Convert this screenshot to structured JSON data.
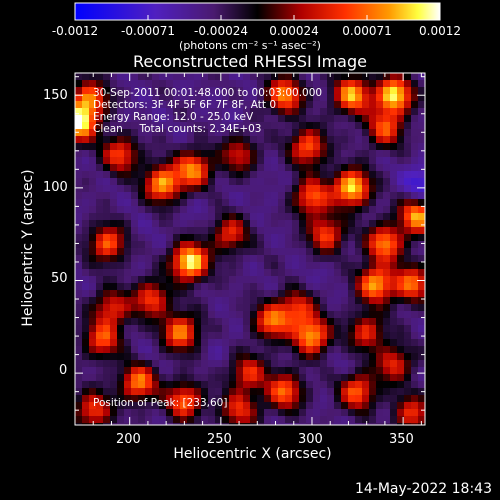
{
  "colors": {
    "background": "#000000",
    "text": "#ffffff",
    "colormap": "rainbow-blue-black-red-yellow-white"
  },
  "colorbar": {
    "tick_labels": [
      "-0.0012",
      "-0.00071",
      "-0.00024",
      "0.00024",
      "0.00071",
      "0.0012"
    ],
    "units_label": "(photons cm⁻² s⁻¹ asec⁻²)"
  },
  "title": "Reconstructed RHESSI Image",
  "info": {
    "time": "30-Sep-2011 00:01:48.000 to 00:03:00.000",
    "detectors": "Detectors: 3F 4F 5F 6F 7F 8F, Att 0",
    "energy": "Energy Range: 12.0 - 25.0 keV",
    "clean": "Clean     Total counts: 2.34E+03",
    "position": "Position of Peak: [233,60]"
  },
  "timestamp": "14-May-2022 18:43",
  "chart_data": {
    "type": "heatmap",
    "title": "Reconstructed RHESSI Image",
    "xlabel": "Heliocentric X (arcsec)",
    "ylabel": "Heliocentric Y (arcsec)",
    "xlim": [
      170,
      362
    ],
    "ylim": [
      -28,
      162
    ],
    "xticks": [
      200,
      250,
      300,
      350
    ],
    "yticks": [
      0,
      50,
      100,
      150
    ],
    "colorbar_range": [
      -0.0012,
      0.0012
    ],
    "peak_position": [
      233,
      60
    ],
    "hotspots": [
      {
        "x": 172,
        "y": 135,
        "v": 0.0011
      },
      {
        "x": 178,
        "y": 148,
        "v": 0.0007
      },
      {
        "x": 195,
        "y": 118,
        "v": 0.0006
      },
      {
        "x": 218,
        "y": 102,
        "v": 0.0009
      },
      {
        "x": 235,
        "y": 110,
        "v": 0.0008
      },
      {
        "x": 260,
        "y": 118,
        "v": 0.0004
      },
      {
        "x": 285,
        "y": 150,
        "v": 0.0008
      },
      {
        "x": 322,
        "y": 150,
        "v": 0.0009
      },
      {
        "x": 345,
        "y": 150,
        "v": 0.0011
      },
      {
        "x": 340,
        "y": 132,
        "v": 0.0006
      },
      {
        "x": 298,
        "y": 122,
        "v": 0.0007
      },
      {
        "x": 322,
        "y": 100,
        "v": 0.0011
      },
      {
        "x": 300,
        "y": 95,
        "v": 0.0007
      },
      {
        "x": 340,
        "y": 70,
        "v": 0.0008
      },
      {
        "x": 358,
        "y": 85,
        "v": 0.0009
      },
      {
        "x": 308,
        "y": 75,
        "v": 0.0006
      },
      {
        "x": 335,
        "y": 48,
        "v": 0.0009
      },
      {
        "x": 355,
        "y": 48,
        "v": 0.0007
      },
      {
        "x": 233,
        "y": 60,
        "v": 0.0012
      },
      {
        "x": 255,
        "y": 75,
        "v": 0.0005
      },
      {
        "x": 188,
        "y": 70,
        "v": 0.0007
      },
      {
        "x": 212,
        "y": 40,
        "v": 0.0006
      },
      {
        "x": 228,
        "y": 22,
        "v": 0.0008
      },
      {
        "x": 185,
        "y": 18,
        "v": 0.0006
      },
      {
        "x": 190,
        "y": 35,
        "v": 0.0005
      },
      {
        "x": 278,
        "y": 28,
        "v": 0.0007
      },
      {
        "x": 300,
        "y": 20,
        "v": 0.0009
      },
      {
        "x": 292,
        "y": 35,
        "v": 0.0005
      },
      {
        "x": 330,
        "y": 22,
        "v": 0.0005
      },
      {
        "x": 345,
        "y": 5,
        "v": 0.0005
      },
      {
        "x": 325,
        "y": -10,
        "v": 0.0007
      },
      {
        "x": 285,
        "y": -10,
        "v": 0.0007
      },
      {
        "x": 205,
        "y": -5,
        "v": 0.0008
      },
      {
        "x": 230,
        "y": -15,
        "v": 0.0007
      },
      {
        "x": 260,
        "y": -20,
        "v": 0.0005
      },
      {
        "x": 265,
        "y": 0,
        "v": 0.0005
      },
      {
        "x": 180,
        "y": -20,
        "v": 0.0006
      },
      {
        "x": 355,
        "y": -22,
        "v": 0.0005
      }
    ],
    "coldspots": [
      {
        "x": 205,
        "y": 140,
        "v": -0.0004
      },
      {
        "x": 258,
        "y": 142,
        "v": -0.0004
      },
      {
        "x": 240,
        "y": 88,
        "v": -0.0004
      },
      {
        "x": 275,
        "y": 98,
        "v": -0.0004
      },
      {
        "x": 275,
        "y": 60,
        "v": -0.0003
      },
      {
        "x": 300,
        "y": 50,
        "v": -0.0004
      },
      {
        "x": 360,
        "y": 102,
        "v": -0.0009
      },
      {
        "x": 212,
        "y": 8,
        "v": -0.0004
      },
      {
        "x": 252,
        "y": 15,
        "v": -0.0004
      },
      {
        "x": 318,
        "y": 5,
        "v": -0.0004
      },
      {
        "x": 205,
        "y": 72,
        "v": -0.0004
      },
      {
        "x": 250,
        "y": 45,
        "v": -0.0003
      }
    ]
  }
}
